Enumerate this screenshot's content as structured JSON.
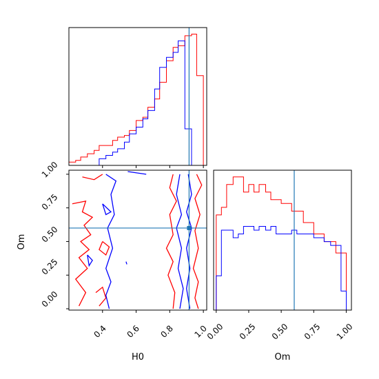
{
  "chart_data": {
    "type": "corner",
    "parameters": [
      "H0",
      "Om"
    ],
    "truths": {
      "H0": 0.915,
      "Om": 0.6
    },
    "colors": {
      "red": "#ff0000",
      "blue": "#0000ff",
      "truth": "#1f77b4"
    },
    "x_ticks_H0": [
      "0.4",
      "0.6",
      "0.8",
      "1.0"
    ],
    "x_ticks_Om": [
      "0.00",
      "0.25",
      "0.50",
      "0.75",
      "1.00"
    ],
    "y_ticks_Om": [
      "0.00",
      "0.25",
      "0.50",
      "0.75",
      "1.00"
    ],
    "panels": [
      {
        "type": "histogram",
        "parameter": "H0",
        "xlim": [
          0.2,
          1.02
        ],
        "series": [
          {
            "color": "red",
            "edges": [
              0.2,
              0.24,
              0.27,
              0.31,
              0.35,
              0.38,
              0.42,
              0.46,
              0.49,
              0.53,
              0.56,
              0.6,
              0.64,
              0.67,
              0.71,
              0.74,
              0.78,
              0.82,
              0.85,
              0.89,
              0.93,
              0.96,
              1.0
            ],
            "values": [
              2,
              3,
              5,
              7,
              9,
              12,
              12,
              15,
              17,
              18,
              21,
              27,
              29,
              35,
              40,
              50,
              63,
              71,
              72,
              78,
              79,
              54
            ]
          },
          {
            "color": "blue",
            "edges": [
              0.38,
              0.42,
              0.46,
              0.49,
              0.53,
              0.56,
              0.6,
              0.64,
              0.67,
              0.71,
              0.74,
              0.78,
              0.82,
              0.85,
              0.89,
              0.93
            ],
            "values": [
              4,
              6,
              8,
              10,
              14,
              19,
              23,
              28,
              33,
              46,
              59,
              65,
              68,
              75,
              22
            ]
          }
        ]
      },
      {
        "type": "histogram",
        "parameter": "Om",
        "xlim": [
          -0.02,
          1.04
        ],
        "series": [
          {
            "color": "red",
            "edges": [
              0.0,
              0.04,
              0.08,
              0.13,
              0.17,
              0.21,
              0.25,
              0.29,
              0.33,
              0.38,
              0.42,
              0.46,
              0.5,
              0.54,
              0.58,
              0.62,
              0.67,
              0.71,
              0.75,
              0.79,
              0.83,
              0.88,
              0.92,
              0.96,
              1.0
            ],
            "values": [
              0.5,
              0.54,
              0.66,
              0.7,
              0.7,
              0.62,
              0.66,
              0.62,
              0.66,
              0.62,
              0.58,
              0.58,
              0.56,
              0.56,
              0.52,
              0.52,
              0.46,
              0.46,
              0.4,
              0.4,
              0.36,
              0.36,
              0.3,
              0.3
            ]
          },
          {
            "color": "blue",
            "edges": [
              0.0,
              0.04,
              0.08,
              0.13,
              0.17,
              0.21,
              0.25,
              0.29,
              0.33,
              0.38,
              0.42,
              0.46,
              0.5,
              0.54,
              0.58,
              0.62,
              0.67,
              0.71,
              0.75,
              0.79,
              0.83,
              0.88,
              0.92,
              0.96,
              1.0
            ],
            "values": [
              0.18,
              0.42,
              0.42,
              0.38,
              0.4,
              0.44,
              0.44,
              0.42,
              0.44,
              0.42,
              0.44,
              0.4,
              0.4,
              0.4,
              0.42,
              0.4,
              0.4,
              0.4,
              0.38,
              0.38,
              0.36,
              0.34,
              0.34,
              0.1
            ]
          }
        ]
      },
      {
        "type": "contour",
        "x": "H0",
        "y": "Om",
        "xlim": [
          0.2,
          1.02
        ],
        "ylim": [
          -0.01,
          1.03
        ],
        "contours": [
          {
            "color": "red",
            "points": [
              [
                0.82,
                1.0
              ],
              [
                0.8,
                0.9
              ],
              [
                0.84,
                0.8
              ],
              [
                0.8,
                0.7
              ],
              [
                0.82,
                0.55
              ],
              [
                0.78,
                0.45
              ],
              [
                0.82,
                0.35
              ],
              [
                0.79,
                0.25
              ],
              [
                0.83,
                0.12
              ],
              [
                0.82,
                0.0
              ]
            ]
          },
          {
            "color": "red",
            "points": [
              [
                0.96,
                1.0
              ],
              [
                0.99,
                0.92
              ],
              [
                0.95,
                0.82
              ],
              [
                0.98,
                0.7
              ],
              [
                0.95,
                0.58
              ],
              [
                0.97,
                0.45
              ],
              [
                0.94,
                0.3
              ],
              [
                0.97,
                0.2
              ],
              [
                0.95,
                0.08
              ],
              [
                0.97,
                0.0
              ]
            ]
          },
          {
            "color": "red",
            "points": [
              [
                0.28,
                0.98
              ],
              [
                0.35,
                0.96
              ],
              [
                0.4,
                1.0
              ]
            ]
          },
          {
            "color": "red",
            "points": [
              [
                0.22,
                0.78
              ],
              [
                0.3,
                0.8
              ],
              [
                0.28,
                0.72
              ],
              [
                0.34,
                0.68
              ],
              [
                0.29,
                0.62
              ],
              [
                0.33,
                0.55
              ],
              [
                0.27,
                0.5
              ],
              [
                0.32,
                0.44
              ],
              [
                0.26,
                0.38
              ],
              [
                0.31,
                0.3
              ],
              [
                0.24,
                0.22
              ],
              [
                0.3,
                0.12
              ],
              [
                0.26,
                0.02
              ]
            ]
          },
          {
            "color": "red",
            "points": [
              [
                0.36,
                0.12
              ],
              [
                0.4,
                0.16
              ],
              [
                0.42,
                0.08
              ],
              [
                0.38,
                0.02
              ]
            ]
          },
          {
            "color": "red",
            "points": [
              [
                0.4,
                0.5
              ],
              [
                0.44,
                0.46
              ],
              [
                0.42,
                0.4
              ],
              [
                0.38,
                0.44
              ],
              [
                0.4,
                0.5
              ]
            ]
          },
          {
            "color": "blue",
            "points": [
              [
                0.42,
                1.0
              ],
              [
                0.48,
                0.95
              ],
              [
                0.45,
                0.85
              ],
              [
                0.47,
                0.7
              ],
              [
                0.43,
                0.6
              ],
              [
                0.46,
                0.45
              ],
              [
                0.42,
                0.3
              ],
              [
                0.45,
                0.2
              ],
              [
                0.42,
                0.1
              ],
              [
                0.44,
                0.0
              ]
            ]
          },
          {
            "color": "blue",
            "points": [
              [
                0.55,
                1.02
              ],
              [
                0.66,
                1.0
              ]
            ]
          },
          {
            "color": "blue",
            "points": [
              [
                0.86,
                1.0
              ],
              [
                0.84,
                0.85
              ],
              [
                0.87,
                0.7
              ],
              [
                0.84,
                0.6
              ],
              [
                0.87,
                0.45
              ],
              [
                0.85,
                0.3
              ],
              [
                0.88,
                0.15
              ],
              [
                0.86,
                0.0
              ]
            ]
          },
          {
            "color": "blue",
            "points": [
              [
                0.91,
                1.0
              ],
              [
                0.93,
                0.85
              ],
              [
                0.9,
                0.72
              ],
              [
                0.93,
                0.6
              ],
              [
                0.9,
                0.45
              ],
              [
                0.92,
                0.3
              ],
              [
                0.9,
                0.15
              ],
              [
                0.92,
                0.0
              ]
            ]
          },
          {
            "color": "blue",
            "points": [
              [
                0.4,
                0.78
              ],
              [
                0.45,
                0.72
              ],
              [
                0.42,
                0.7
              ],
              [
                0.4,
                0.78
              ]
            ]
          },
          {
            "color": "blue",
            "points": [
              [
                0.31,
                0.4
              ],
              [
                0.34,
                0.36
              ],
              [
                0.32,
                0.32
              ],
              [
                0.31,
                0.4
              ]
            ]
          },
          {
            "color": "blue",
            "points": [
              [
                0.54,
                0.35
              ],
              [
                0.545,
                0.33
              ]
            ]
          }
        ]
      }
    ]
  }
}
